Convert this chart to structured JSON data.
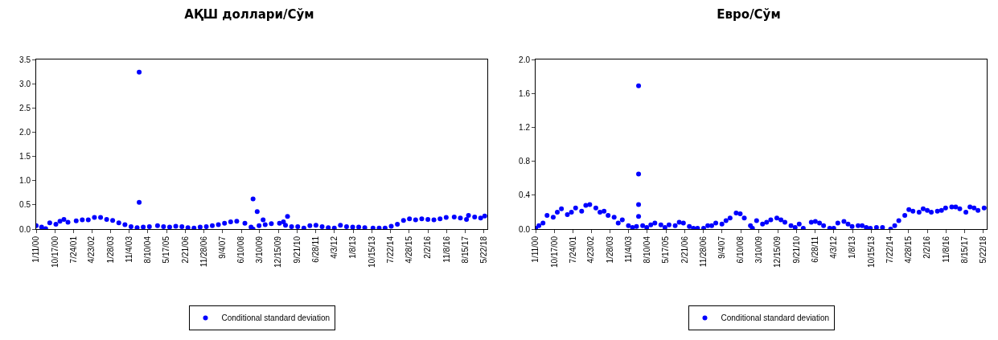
{
  "chart_data": [
    {
      "type": "scatter",
      "title": "АҚШ доллари/Сўм",
      "marker": "circle",
      "legend": "bottom",
      "grid": false,
      "x": [
        "2000-01-11",
        "2000-04",
        "2000-06",
        "2000-08",
        "2000-11",
        "2001-01",
        "2001-03",
        "2001-05",
        "2001-09",
        "2001-12",
        "2002-03",
        "2002-06",
        "2002-09",
        "2002-12",
        "2003-03",
        "2003-06",
        "2003-09",
        "2003-12",
        "2004-03",
        "2004-04",
        "2004-04",
        "2004-06",
        "2004-09",
        "2005-01",
        "2005-04",
        "2005-07",
        "2005-10",
        "2006-01",
        "2006-04",
        "2006-07",
        "2006-10",
        "2007-01",
        "2007-04",
        "2007-07",
        "2007-10",
        "2008-01",
        "2008-04",
        "2008-08",
        "2008-11",
        "2008-12",
        "2008-12",
        "2009-02",
        "2009-03",
        "2009-05",
        "2009-06",
        "2009-09",
        "2010-01",
        "2010-03",
        "2010-04",
        "2010-05",
        "2010-07",
        "2010-10",
        "2011-01",
        "2011-04",
        "2011-07",
        "2011-10",
        "2012-01",
        "2012-04",
        "2012-07",
        "2012-10",
        "2013-01",
        "2013-04",
        "2013-07",
        "2013-11",
        "2014-02",
        "2014-05",
        "2014-08",
        "2014-11",
        "2015-02",
        "2015-05",
        "2015-08",
        "2015-11",
        "2016-02",
        "2016-05",
        "2016-08",
        "2016-11",
        "2017-03",
        "2017-06",
        "2017-09",
        "2017-10",
        "2018-01",
        "2018-04",
        "2018-06"
      ],
      "series": [
        {
          "name": "Conditional standard deviation",
          "color": "#0000ff",
          "values": [
            0.07,
            0.04,
            0.01,
            0.13,
            0.1,
            0.16,
            0.2,
            0.14,
            0.17,
            0.19,
            0.19,
            0.24,
            0.24,
            0.2,
            0.18,
            0.13,
            0.09,
            0.05,
            0.03,
            3.24,
            0.55,
            0.04,
            0.05,
            0.07,
            0.05,
            0.04,
            0.06,
            0.05,
            0.03,
            0.02,
            0.04,
            0.05,
            0.07,
            0.09,
            0.12,
            0.15,
            0.16,
            0.12,
            0.04,
            0.0,
            0.62,
            0.36,
            0.07,
            0.19,
            0.09,
            0.11,
            0.12,
            0.15,
            0.08,
            0.26,
            0.05,
            0.05,
            0.02,
            0.07,
            0.08,
            0.05,
            0.03,
            0.02,
            0.08,
            0.05,
            0.04,
            0.04,
            0.03,
            0.02,
            0.02,
            0.02,
            0.06,
            0.1,
            0.18,
            0.21,
            0.19,
            0.21,
            0.2,
            0.19,
            0.21,
            0.24,
            0.25,
            0.23,
            0.2,
            0.28,
            0.25,
            0.23,
            0.27
          ]
        }
      ],
      "xlim": [
        "2000-01-11",
        "2018-07-10"
      ],
      "xticks": [
        {
          "value": "2000-01-11",
          "label": "1/11/00"
        },
        {
          "value": "2000-10-17",
          "label": "10/17/00"
        },
        {
          "value": "2001-07-24",
          "label": "7/24/01"
        },
        {
          "value": "2002-04-23",
          "label": "4/23/02"
        },
        {
          "value": "2003-01-28",
          "label": "1/28/03"
        },
        {
          "value": "2003-11-04",
          "label": "11/4/03"
        },
        {
          "value": "2004-08-10",
          "label": "8/10/04"
        },
        {
          "value": "2005-05-17",
          "label": "5/17/05"
        },
        {
          "value": "2006-02-21",
          "label": "2/21/06"
        },
        {
          "value": "2006-11-28",
          "label": "11/28/06"
        },
        {
          "value": "2007-09-04",
          "label": "9/4/07"
        },
        {
          "value": "2008-06-10",
          "label": "6/10/08"
        },
        {
          "value": "2009-03-10",
          "label": "3/10/09"
        },
        {
          "value": "2009-12-15",
          "label": "12/15/09"
        },
        {
          "value": "2010-09-21",
          "label": "9/21/10"
        },
        {
          "value": "2011-06-28",
          "label": "6/28/11"
        },
        {
          "value": "2012-04-03",
          "label": "4/3/12"
        },
        {
          "value": "2013-01-08",
          "label": "1/8/13"
        },
        {
          "value": "2013-10-15",
          "label": "10/15/13"
        },
        {
          "value": "2014-07-22",
          "label": "7/22/14"
        },
        {
          "value": "2015-04-28",
          "label": "4/28/15"
        },
        {
          "value": "2016-02-02",
          "label": "2/2/16"
        },
        {
          "value": "2016-11-08",
          "label": "11/8/16"
        },
        {
          "value": "2017-08-15",
          "label": "8/15/17"
        },
        {
          "value": "2018-05-22",
          "label": "5/22/18"
        }
      ],
      "ylim": [
        0,
        3.5
      ],
      "yticks": [
        {
          "value": 0,
          "label": "0.0"
        },
        {
          "value": 0.5,
          "label": "0.5"
        },
        {
          "value": 1,
          "label": "1.0"
        },
        {
          "value": 1.5,
          "label": "1.5"
        },
        {
          "value": 2,
          "label": "2.0"
        },
        {
          "value": 2.5,
          "label": "2.5"
        },
        {
          "value": 3,
          "label": "3.0"
        },
        {
          "value": 3.5,
          "label": "3.5"
        }
      ]
    },
    {
      "type": "scatter",
      "title": "Евро/Сўм",
      "marker": "circle",
      "legend": "bottom",
      "grid": false,
      "x": [
        "2000-01-11",
        "2000-03",
        "2000-05",
        "2000-07",
        "2000-10",
        "2000-12",
        "2001-02",
        "2001-05",
        "2001-07",
        "2001-09",
        "2001-12",
        "2002-02",
        "2002-04",
        "2002-07",
        "2002-09",
        "2002-11",
        "2003-01",
        "2003-04",
        "2003-06",
        "2003-08",
        "2003-11",
        "2004-01",
        "2004-03",
        "2004-04",
        "2004-04",
        "2004-04",
        "2004-04",
        "2004-06",
        "2004-08",
        "2004-10",
        "2004-12",
        "2005-03",
        "2005-05",
        "2005-07",
        "2005-10",
        "2005-12",
        "2006-02",
        "2006-05",
        "2006-07",
        "2006-09",
        "2006-12",
        "2007-02",
        "2007-04",
        "2007-06",
        "2007-09",
        "2007-11",
        "2008-01",
        "2008-04",
        "2008-06",
        "2008-08",
        "2008-11",
        "2008-12",
        "2009-02",
        "2009-05",
        "2009-07",
        "2009-09",
        "2009-12",
        "2010-02",
        "2010-04",
        "2010-07",
        "2010-09",
        "2010-11",
        "2011-01",
        "2011-05",
        "2011-07",
        "2011-09",
        "2011-11",
        "2012-02",
        "2012-04",
        "2012-06",
        "2012-09",
        "2012-11",
        "2013-01",
        "2013-04",
        "2013-06",
        "2013-08",
        "2013-10",
        "2014-01",
        "2014-04",
        "2014-08",
        "2014-10",
        "2014-12",
        "2015-03",
        "2015-05",
        "2015-07",
        "2015-10",
        "2015-12",
        "2016-02",
        "2016-04",
        "2016-07",
        "2016-09",
        "2016-11",
        "2017-02",
        "2017-04",
        "2017-06",
        "2017-09",
        "2017-11",
        "2018-01",
        "2018-03",
        "2018-06"
      ],
      "series": [
        {
          "name": "Conditional standard deviation",
          "color": "#0000ff",
          "values": [
            0.01,
            0.04,
            0.07,
            0.16,
            0.14,
            0.2,
            0.24,
            0.17,
            0.2,
            0.25,
            0.21,
            0.28,
            0.29,
            0.25,
            0.2,
            0.21,
            0.16,
            0.14,
            0.07,
            0.11,
            0.04,
            0.02,
            0.03,
            1.69,
            0.65,
            0.29,
            0.15,
            0.04,
            0.02,
            0.05,
            0.07,
            0.05,
            0.02,
            0.05,
            0.04,
            0.08,
            0.07,
            0.03,
            0.01,
            0.01,
            0.01,
            0.04,
            0.04,
            0.07,
            0.06,
            0.1,
            0.13,
            0.19,
            0.18,
            0.13,
            0.04,
            0.01,
            0.1,
            0.06,
            0.08,
            0.11,
            0.13,
            0.11,
            0.08,
            0.04,
            0.02,
            0.06,
            0.01,
            0.08,
            0.09,
            0.07,
            0.04,
            0.01,
            0.01,
            0.07,
            0.09,
            0.06,
            0.03,
            0.04,
            0.04,
            0.02,
            0.01,
            0.02,
            0.02,
            0.0,
            0.04,
            0.1,
            0.16,
            0.23,
            0.21,
            0.2,
            0.24,
            0.22,
            0.2,
            0.21,
            0.22,
            0.25,
            0.26,
            0.26,
            0.24,
            0.2,
            0.26,
            0.25,
            0.22,
            0.25
          ]
        }
      ],
      "xlim": [
        "2000-01-11",
        "2018-07-10"
      ],
      "xticks": [
        {
          "value": "2000-01-11",
          "label": "1/11/00"
        },
        {
          "value": "2000-10-17",
          "label": "10/17/00"
        },
        {
          "value": "2001-07-24",
          "label": "7/24/01"
        },
        {
          "value": "2002-04-23",
          "label": "4/23/02"
        },
        {
          "value": "2003-01-28",
          "label": "1/28/03"
        },
        {
          "value": "2003-11-04",
          "label": "11/4/03"
        },
        {
          "value": "2004-08-10",
          "label": "8/10/04"
        },
        {
          "value": "2005-05-17",
          "label": "5/17/05"
        },
        {
          "value": "2006-02-21",
          "label": "2/21/06"
        },
        {
          "value": "2006-11-28",
          "label": "11/28/06"
        },
        {
          "value": "2007-09-04",
          "label": "9/4/07"
        },
        {
          "value": "2008-06-10",
          "label": "6/10/08"
        },
        {
          "value": "2009-03-10",
          "label": "3/10/09"
        },
        {
          "value": "2009-12-15",
          "label": "12/15/09"
        },
        {
          "value": "2010-09-21",
          "label": "9/21/10"
        },
        {
          "value": "2011-06-28",
          "label": "6/28/11"
        },
        {
          "value": "2012-04-03",
          "label": "4/3/12"
        },
        {
          "value": "2013-01-08",
          "label": "1/8/13"
        },
        {
          "value": "2013-10-15",
          "label": "10/15/13"
        },
        {
          "value": "2014-07-22",
          "label": "7/22/14"
        },
        {
          "value": "2015-04-28",
          "label": "4/28/15"
        },
        {
          "value": "2016-02-02",
          "label": "2/2/16"
        },
        {
          "value": "2016-11-08",
          "label": "11/8/16"
        },
        {
          "value": "2017-08-15",
          "label": "8/15/17"
        },
        {
          "value": "2018-05-22",
          "label": "5/22/18"
        }
      ],
      "ylim": [
        0,
        2.0
      ],
      "yticks": [
        {
          "value": 0,
          "label": "0.0"
        },
        {
          "value": 0.4,
          "label": "0.4"
        },
        {
          "value": 0.8,
          "label": "0.8"
        },
        {
          "value": 1.2,
          "label": "1.2"
        },
        {
          "value": 1.6,
          "label": "1.6"
        },
        {
          "value": 2,
          "label": "2.0"
        }
      ]
    }
  ]
}
